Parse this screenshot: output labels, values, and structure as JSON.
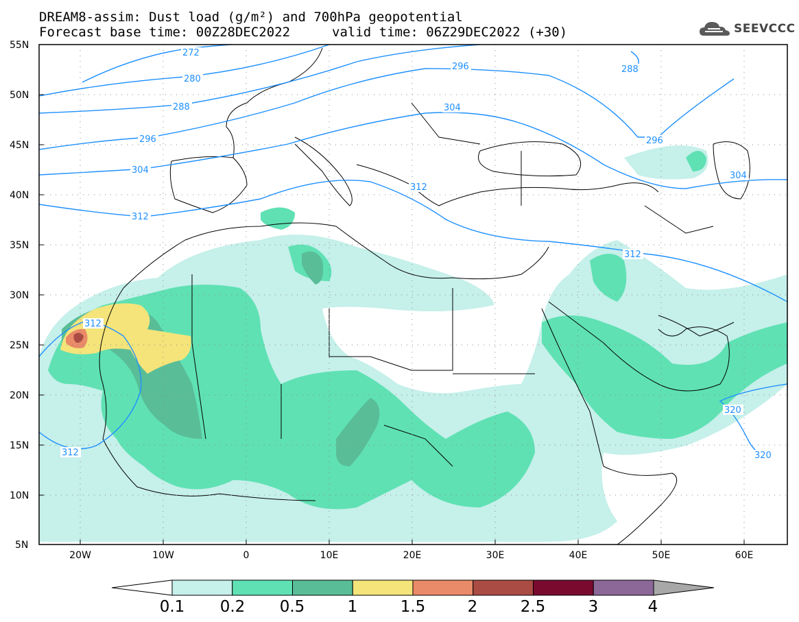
{
  "header": {
    "title_line1": "DREAM8-assim: Dust load (g/m²) and 700hPa geopotential",
    "title_line2": "Forecast base time: 00Z28DEC2022",
    "valid_time": "valid time: 06Z29DEC2022 (+30)",
    "logo_text": "SEEVCCC"
  },
  "map": {
    "lat_labels": [
      "55N",
      "50N",
      "45N",
      "40N",
      "35N",
      "30N",
      "25N",
      "20N",
      "15N",
      "10N",
      "5N"
    ],
    "lon_labels": [
      "20W",
      "10W",
      "0",
      "10E",
      "20E",
      "30E",
      "40E",
      "50E",
      "60E"
    ],
    "contour_labels": [
      "272",
      "280",
      "288",
      "296",
      "304",
      "312",
      "296",
      "304",
      "288",
      "296",
      "304",
      "312",
      "312",
      "312",
      "312",
      "320",
      "320"
    ],
    "contour_color": "#1e90ff",
    "coastline_color": "#000000"
  },
  "colorbar": {
    "labels": [
      "0.1",
      "0.2",
      "0.5",
      "1",
      "1.5",
      "2",
      "2.5",
      "3",
      "4"
    ],
    "colors": [
      "#c6f0ea",
      "#5fe1b4",
      "#59bd98",
      "#f4e47a",
      "#e98a68",
      "#aa4c43",
      "#7a0b2f",
      "#8b6898",
      "#a8a8a8"
    ]
  },
  "legend_colors": {
    "level_01": "#c6f0ea",
    "level_02": "#5fe1b4",
    "level_05": "#59bd98",
    "level_1": "#f4e47a",
    "level_15": "#e98a68",
    "level_2": "#aa4c43"
  }
}
